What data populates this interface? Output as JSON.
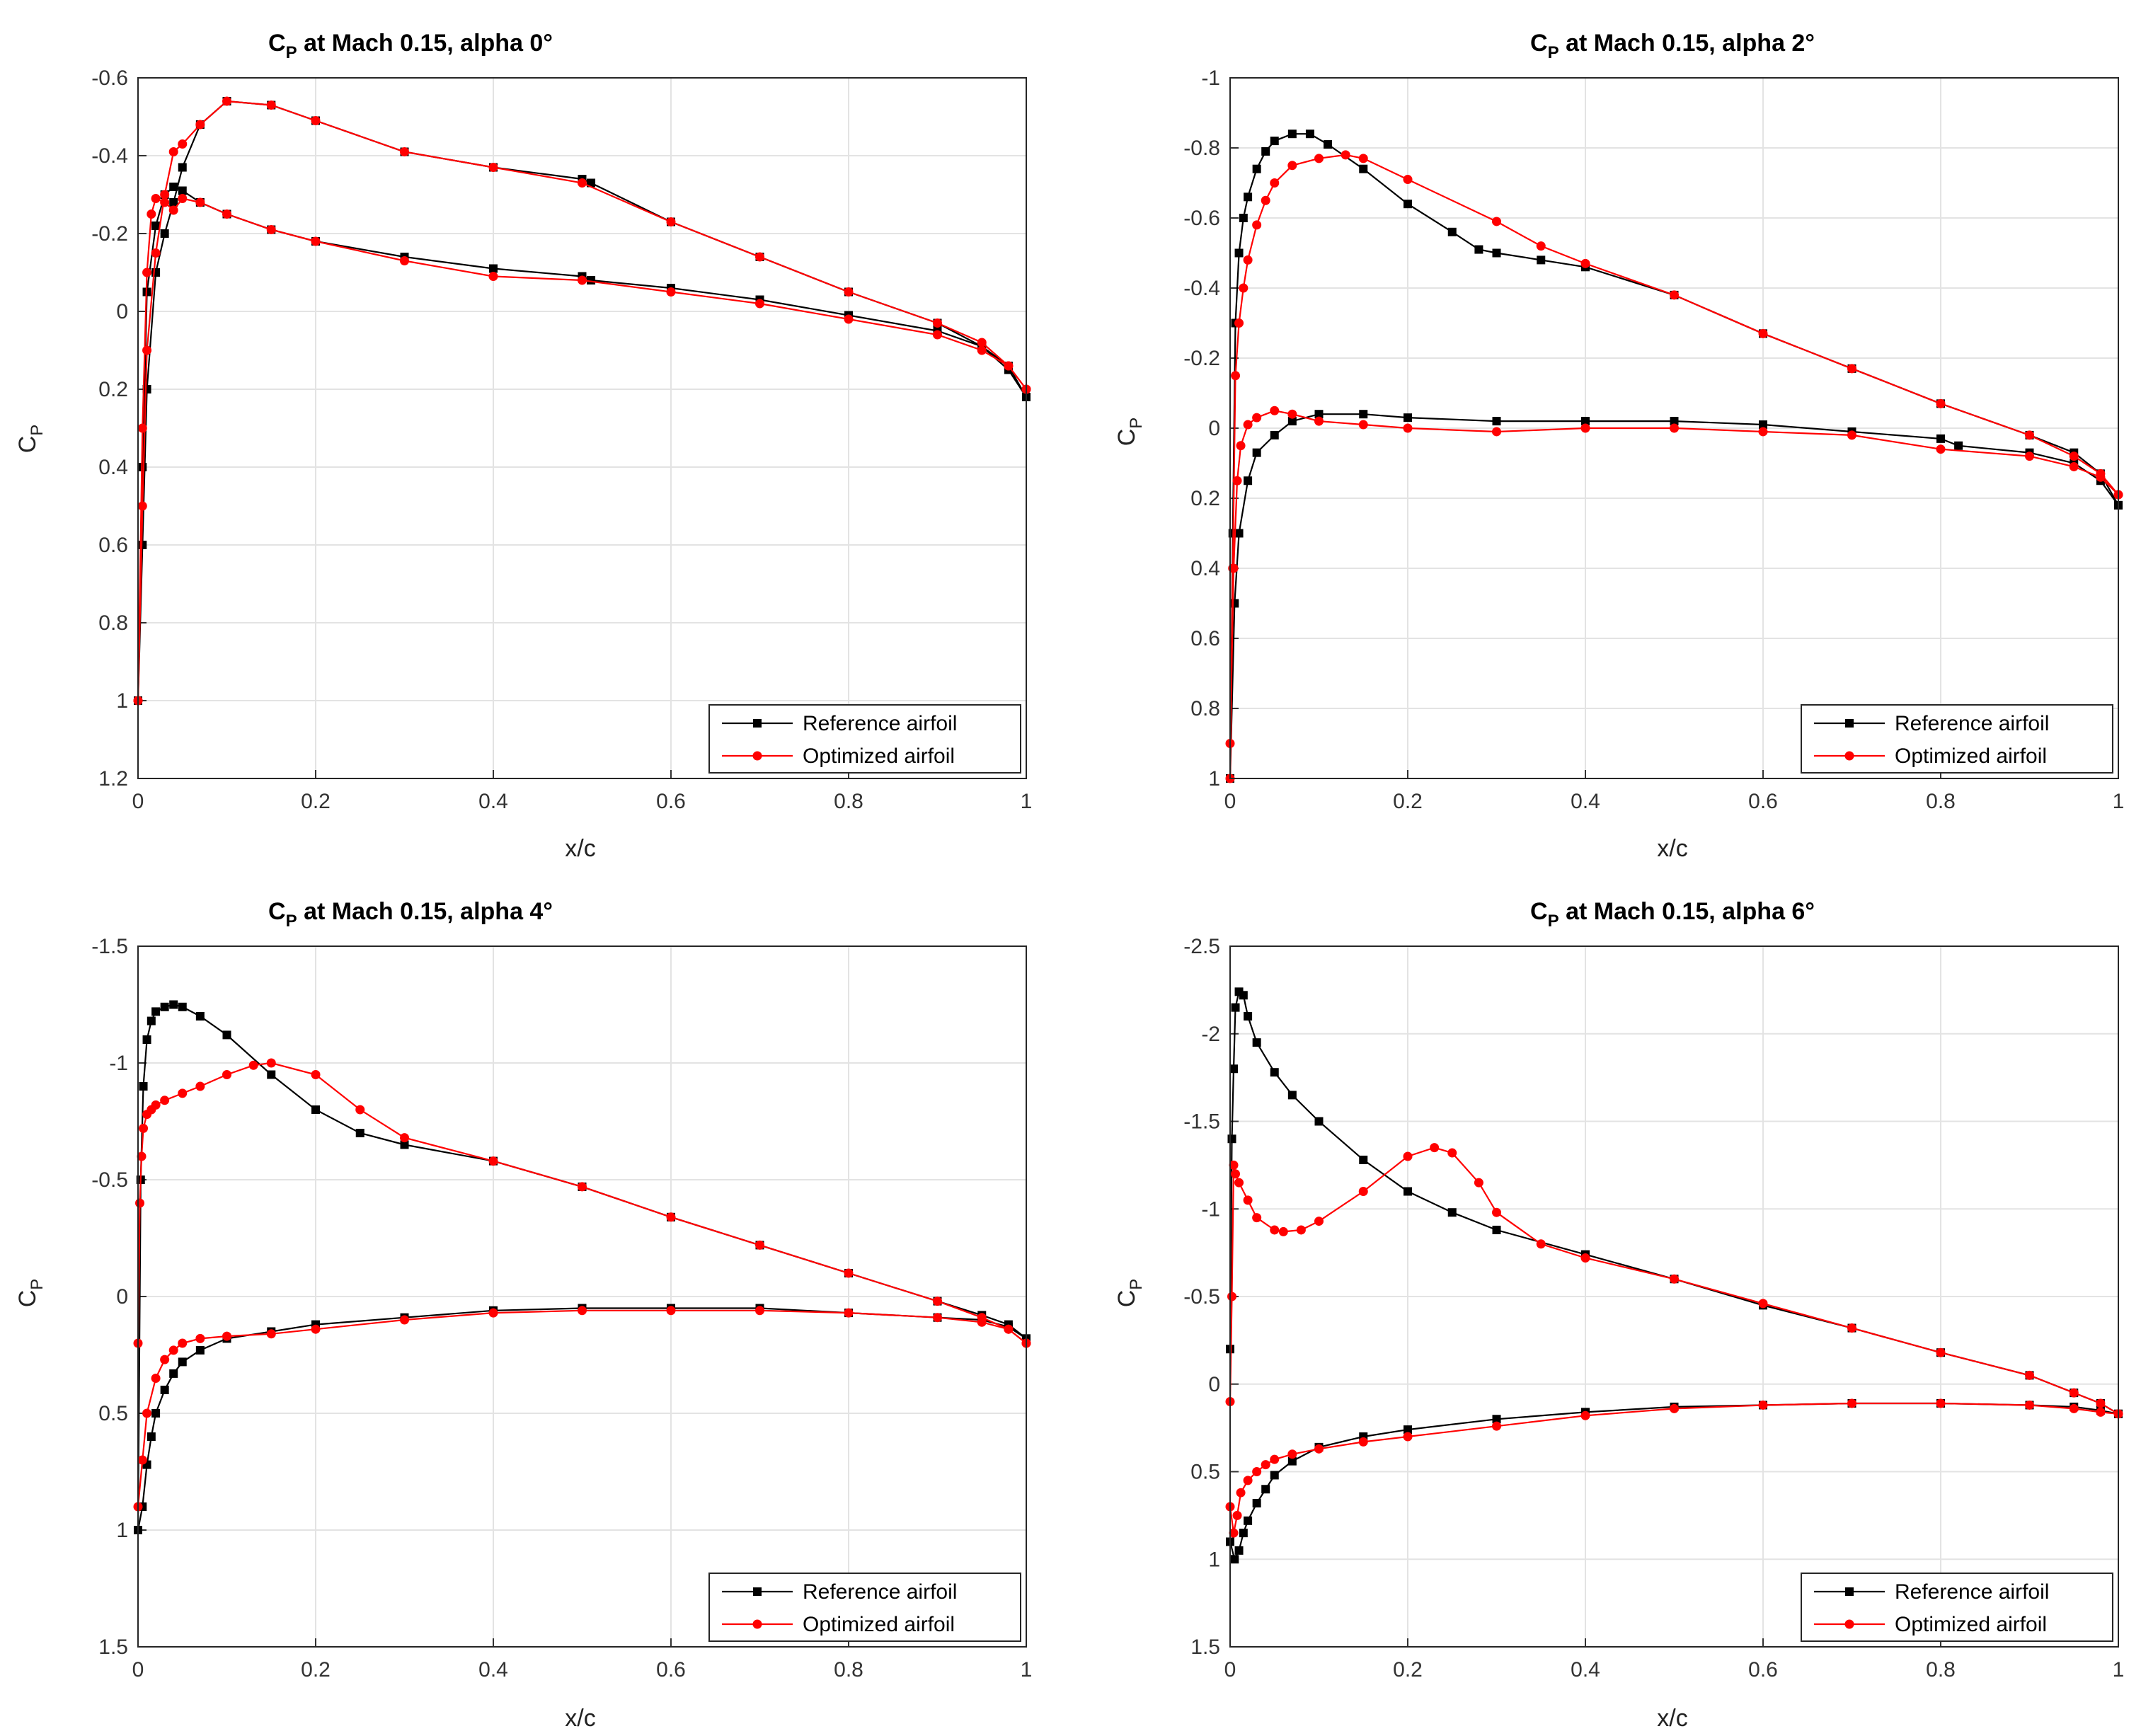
{
  "chart_data": [
    {
      "type": "line",
      "title": {
        "main": "C",
        "sub": "P",
        "rest": " at Mach 0.15, alpha 0°"
      },
      "xlabel": "x/c",
      "ylabel": {
        "main": "C",
        "sub": "P"
      },
      "xlim": [
        0,
        1
      ],
      "ylim": [
        -0.6,
        1.2
      ],
      "y_reversed": true,
      "xticks": [
        "0",
        "0.2",
        "0.4",
        "0.6",
        "0.8",
        "1"
      ],
      "yticks": [
        "-0.6",
        "-0.4",
        "-0.2",
        "0",
        "0.2",
        "0.4",
        "0.6",
        "0.8",
        "1",
        "1.2"
      ],
      "grid": true,
      "legend_position": "bottom-right",
      "series": [
        {
          "name": "Reference airfoil",
          "color": "#000000",
          "marker": "square",
          "upper_x": [
            0,
            0.005,
            0.01,
            0.02,
            0.03,
            0.04,
            0.05,
            0.07,
            0.1,
            0.15,
            0.2,
            0.3,
            0.4,
            0.5,
            0.51,
            0.6,
            0.7,
            0.8,
            0.9,
            0.95,
            0.98,
            1.0
          ],
          "upper_y": [
            1.0,
            0.4,
            -0.05,
            -0.22,
            -0.3,
            -0.32,
            -0.31,
            -0.28,
            -0.25,
            -0.21,
            -0.18,
            -0.14,
            -0.11,
            -0.09,
            -0.08,
            -0.06,
            -0.03,
            0.01,
            0.05,
            0.09,
            0.14,
            0.22
          ],
          "lower_x": [
            0,
            0.005,
            0.01,
            0.02,
            0.03,
            0.04,
            0.05,
            0.07,
            0.1,
            0.15,
            0.2,
            0.3,
            0.4,
            0.5,
            0.51,
            0.6,
            0.7,
            0.8,
            0.9,
            0.95,
            0.98,
            1.0
          ],
          "lower_y": [
            1.0,
            0.6,
            0.2,
            -0.1,
            -0.2,
            -0.28,
            -0.37,
            -0.48,
            -0.54,
            -0.53,
            -0.49,
            -0.41,
            -0.37,
            -0.34,
            -0.33,
            -0.23,
            -0.14,
            -0.05,
            0.03,
            0.09,
            0.15,
            0.22
          ]
        },
        {
          "name": "Optimized airfoil",
          "color": "#ff0000",
          "marker": "circle",
          "upper_x": [
            0,
            0.005,
            0.01,
            0.015,
            0.02,
            0.03,
            0.04,
            0.05,
            0.07,
            0.1,
            0.15,
            0.2,
            0.3,
            0.4,
            0.5,
            0.6,
            0.7,
            0.8,
            0.9,
            0.95,
            0.98,
            1.0
          ],
          "upper_y": [
            1.0,
            0.3,
            -0.1,
            -0.25,
            -0.29,
            -0.28,
            -0.26,
            -0.29,
            -0.28,
            -0.25,
            -0.21,
            -0.18,
            -0.13,
            -0.09,
            -0.08,
            -0.05,
            -0.02,
            0.02,
            0.06,
            0.1,
            0.14,
            0.2
          ],
          "lower_x": [
            0,
            0.005,
            0.01,
            0.02,
            0.03,
            0.04,
            0.05,
            0.07,
            0.1,
            0.15,
            0.2,
            0.3,
            0.4,
            0.5,
            0.6,
            0.7,
            0.8,
            0.9,
            0.95,
            0.98,
            1.0
          ],
          "lower_y": [
            1.0,
            0.5,
            0.1,
            -0.15,
            -0.3,
            -0.41,
            -0.43,
            -0.48,
            -0.54,
            -0.53,
            -0.49,
            -0.41,
            -0.37,
            -0.33,
            -0.23,
            -0.14,
            -0.05,
            0.03,
            0.08,
            0.14,
            0.2
          ]
        }
      ]
    },
    {
      "type": "line",
      "title": {
        "main": "C",
        "sub": "P",
        "rest": " at Mach 0.15, alpha 2°"
      },
      "xlabel": "x/c",
      "ylabel": {
        "main": "C",
        "sub": "P"
      },
      "xlim": [
        0,
        1
      ],
      "ylim": [
        -1,
        1
      ],
      "y_reversed": true,
      "xticks": [
        "0",
        "0.2",
        "0.4",
        "0.6",
        "0.8",
        "1"
      ],
      "yticks": [
        "-1",
        "-0.8",
        "-0.6",
        "-0.4",
        "-0.2",
        "0",
        "0.2",
        "0.4",
        "0.6",
        "0.8",
        "1"
      ],
      "grid": true,
      "legend_position": "bottom-right",
      "series": [
        {
          "name": "Reference airfoil",
          "color": "#000000",
          "marker": "square",
          "upper_x": [
            0,
            0.003,
            0.006,
            0.01,
            0.015,
            0.02,
            0.03,
            0.04,
            0.05,
            0.07,
            0.09,
            0.11,
            0.15,
            0.2,
            0.25,
            0.28,
            0.3,
            0.35,
            0.4,
            0.5,
            0.6,
            0.7,
            0.8,
            0.9,
            0.95,
            0.98,
            1.0
          ],
          "upper_y": [
            1.0,
            0.3,
            -0.3,
            -0.5,
            -0.6,
            -0.66,
            -0.74,
            -0.79,
            -0.82,
            -0.84,
            -0.84,
            -0.81,
            -0.74,
            -0.64,
            -0.56,
            -0.51,
            -0.5,
            -0.48,
            -0.46,
            -0.38,
            -0.27,
            -0.17,
            -0.07,
            0.02,
            0.07,
            0.13,
            0.22
          ],
          "lower_x": [
            0,
            0.005,
            0.01,
            0.02,
            0.03,
            0.05,
            0.07,
            0.1,
            0.15,
            0.2,
            0.3,
            0.4,
            0.5,
            0.6,
            0.7,
            0.8,
            0.82,
            0.9,
            0.95,
            0.98,
            1.0
          ],
          "lower_y": [
            1.0,
            0.5,
            0.3,
            0.15,
            0.07,
            0.02,
            -0.02,
            -0.04,
            -0.04,
            -0.03,
            -0.02,
            -0.02,
            -0.02,
            -0.01,
            0.01,
            0.03,
            0.05,
            0.07,
            0.1,
            0.15,
            0.22
          ]
        },
        {
          "name": "Optimized airfoil",
          "color": "#ff0000",
          "marker": "circle",
          "upper_x": [
            0,
            0.003,
            0.006,
            0.01,
            0.015,
            0.02,
            0.03,
            0.04,
            0.05,
            0.07,
            0.1,
            0.13,
            0.15,
            0.2,
            0.3,
            0.35,
            0.4,
            0.5,
            0.6,
            0.7,
            0.8,
            0.9,
            0.95,
            0.98,
            1.0
          ],
          "upper_y": [
            1.0,
            0.4,
            -0.15,
            -0.3,
            -0.4,
            -0.48,
            -0.58,
            -0.65,
            -0.7,
            -0.75,
            -0.77,
            -0.78,
            -0.77,
            -0.71,
            -0.59,
            -0.52,
            -0.47,
            -0.38,
            -0.27,
            -0.17,
            -0.07,
            0.02,
            0.08,
            0.13,
            0.19
          ],
          "lower_x": [
            0,
            0.004,
            0.008,
            0.012,
            0.02,
            0.03,
            0.05,
            0.07,
            0.1,
            0.15,
            0.2,
            0.3,
            0.4,
            0.5,
            0.6,
            0.7,
            0.8,
            0.9,
            0.95,
            0.98,
            1.0
          ],
          "lower_y": [
            0.9,
            0.4,
            0.15,
            0.05,
            -0.01,
            -0.03,
            -0.05,
            -0.04,
            -0.02,
            -0.01,
            0.0,
            0.01,
            0.0,
            0.0,
            0.01,
            0.02,
            0.06,
            0.08,
            0.11,
            0.14,
            0.19
          ]
        }
      ]
    },
    {
      "type": "line",
      "title": {
        "main": "C",
        "sub": "P",
        "rest": " at Mach 0.15, alpha 4°"
      },
      "xlabel": "x/c",
      "ylabel": {
        "main": "C",
        "sub": "P"
      },
      "xlim": [
        0,
        1
      ],
      "ylim": [
        -1.5,
        1.5
      ],
      "y_reversed": true,
      "xticks": [
        "0",
        "0.2",
        "0.4",
        "0.6",
        "0.8",
        "1"
      ],
      "yticks": [
        "-1.5",
        "-1",
        "-0.5",
        "0",
        "0.5",
        "1",
        "1.5"
      ],
      "grid": true,
      "legend_position": "bottom-right",
      "series": [
        {
          "name": "Reference airfoil",
          "color": "#000000",
          "marker": "square",
          "upper_x": [
            0,
            0.003,
            0.006,
            0.01,
            0.015,
            0.02,
            0.03,
            0.04,
            0.05,
            0.07,
            0.1,
            0.15,
            0.2,
            0.25,
            0.3,
            0.4,
            0.5,
            0.6,
            0.7,
            0.8,
            0.9,
            0.95,
            0.98,
            1.0
          ],
          "upper_y": [
            1.0,
            -0.5,
            -0.9,
            -1.1,
            -1.18,
            -1.22,
            -1.24,
            -1.25,
            -1.24,
            -1.2,
            -1.12,
            -0.95,
            -0.8,
            -0.7,
            -0.65,
            -0.58,
            -0.47,
            -0.34,
            -0.22,
            -0.1,
            0.02,
            0.08,
            0.12,
            0.18
          ],
          "lower_x": [
            0,
            0.005,
            0.01,
            0.015,
            0.02,
            0.03,
            0.04,
            0.05,
            0.07,
            0.1,
            0.15,
            0.2,
            0.3,
            0.4,
            0.5,
            0.6,
            0.7,
            0.8,
            0.9,
            0.95,
            0.98,
            1.0
          ],
          "lower_y": [
            1.0,
            0.9,
            0.72,
            0.6,
            0.5,
            0.4,
            0.33,
            0.28,
            0.23,
            0.18,
            0.15,
            0.12,
            0.09,
            0.06,
            0.05,
            0.05,
            0.05,
            0.07,
            0.09,
            0.1,
            0.13,
            0.18
          ]
        },
        {
          "name": "Optimized airfoil",
          "color": "#ff0000",
          "marker": "circle",
          "upper_x": [
            0,
            0.002,
            0.004,
            0.006,
            0.01,
            0.015,
            0.02,
            0.03,
            0.05,
            0.07,
            0.1,
            0.13,
            0.15,
            0.2,
            0.25,
            0.3,
            0.4,
            0.5,
            0.6,
            0.7,
            0.8,
            0.9,
            0.95,
            0.98,
            1.0
          ],
          "upper_y": [
            0.2,
            -0.4,
            -0.6,
            -0.72,
            -0.78,
            -0.8,
            -0.82,
            -0.84,
            -0.87,
            -0.9,
            -0.95,
            -0.99,
            -1.0,
            -0.95,
            -0.8,
            -0.68,
            -0.58,
            -0.47,
            -0.34,
            -0.22,
            -0.1,
            0.02,
            0.09,
            0.14,
            0.2
          ],
          "lower_x": [
            0,
            0.005,
            0.01,
            0.02,
            0.03,
            0.04,
            0.05,
            0.07,
            0.1,
            0.15,
            0.2,
            0.3,
            0.4,
            0.5,
            0.6,
            0.7,
            0.8,
            0.9,
            0.95,
            0.98,
            1.0
          ],
          "lower_y": [
            0.9,
            0.7,
            0.5,
            0.35,
            0.27,
            0.23,
            0.2,
            0.18,
            0.17,
            0.16,
            0.14,
            0.1,
            0.07,
            0.06,
            0.06,
            0.06,
            0.07,
            0.09,
            0.11,
            0.14,
            0.2
          ]
        }
      ]
    },
    {
      "type": "line",
      "title": {
        "main": "C",
        "sub": "P",
        "rest": " at Mach 0.15, alpha 6°"
      },
      "xlabel": "x/c",
      "ylabel": {
        "main": "C",
        "sub": "P"
      },
      "xlim": [
        0,
        1
      ],
      "ylim": [
        -2.5,
        1.5
      ],
      "y_reversed": true,
      "xticks": [
        "0",
        "0.2",
        "0.4",
        "0.6",
        "0.8",
        "1"
      ],
      "yticks": [
        "-2.5",
        "-2",
        "-1.5",
        "-1",
        "-0.5",
        "0",
        "0.5",
        "1",
        "1.5"
      ],
      "grid": true,
      "legend_position": "bottom-right",
      "series": [
        {
          "name": "Reference airfoil",
          "color": "#000000",
          "marker": "square",
          "upper_x": [
            0,
            0.002,
            0.004,
            0.006,
            0.01,
            0.015,
            0.02,
            0.03,
            0.05,
            0.07,
            0.1,
            0.15,
            0.2,
            0.25,
            0.3,
            0.4,
            0.5,
            0.6,
            0.7,
            0.8,
            0.9,
            0.95,
            0.98,
            1.0
          ],
          "upper_y": [
            -0.2,
            -1.4,
            -1.8,
            -2.15,
            -2.24,
            -2.22,
            -2.1,
            -1.95,
            -1.78,
            -1.65,
            -1.5,
            -1.28,
            -1.1,
            -0.98,
            -0.88,
            -0.74,
            -0.6,
            -0.45,
            -0.32,
            -0.18,
            -0.05,
            0.05,
            0.11,
            0.17
          ],
          "lower_x": [
            0,
            0.005,
            0.01,
            0.015,
            0.02,
            0.03,
            0.04,
            0.05,
            0.07,
            0.1,
            0.15,
            0.2,
            0.3,
            0.4,
            0.5,
            0.6,
            0.7,
            0.8,
            0.9,
            0.95,
            0.98,
            1.0
          ],
          "lower_y": [
            0.9,
            1.0,
            0.95,
            0.85,
            0.78,
            0.68,
            0.6,
            0.52,
            0.44,
            0.36,
            0.3,
            0.26,
            0.2,
            0.16,
            0.13,
            0.12,
            0.11,
            0.11,
            0.12,
            0.13,
            0.15,
            0.17
          ]
        },
        {
          "name": "Optimized airfoil",
          "color": "#ff0000",
          "marker": "circle",
          "upper_x": [
            0,
            0.002,
            0.004,
            0.006,
            0.01,
            0.02,
            0.03,
            0.05,
            0.06,
            0.08,
            0.1,
            0.15,
            0.2,
            0.23,
            0.25,
            0.28,
            0.3,
            0.35,
            0.4,
            0.5,
            0.6,
            0.7,
            0.8,
            0.9,
            0.95,
            0.98,
            1.0
          ],
          "upper_y": [
            0.1,
            -0.5,
            -1.25,
            -1.2,
            -1.15,
            -1.05,
            -0.95,
            -0.88,
            -0.87,
            -0.88,
            -0.93,
            -1.1,
            -1.3,
            -1.35,
            -1.32,
            -1.15,
            -0.98,
            -0.8,
            -0.72,
            -0.6,
            -0.46,
            -0.32,
            -0.18,
            -0.05,
            0.05,
            0.11,
            0.17
          ],
          "lower_x": [
            0,
            0.004,
            0.008,
            0.012,
            0.02,
            0.03,
            0.04,
            0.05,
            0.07,
            0.1,
            0.15,
            0.2,
            0.3,
            0.4,
            0.5,
            0.6,
            0.7,
            0.8,
            0.9,
            0.95,
            0.98,
            1.0
          ],
          "lower_y": [
            0.7,
            0.85,
            0.75,
            0.62,
            0.55,
            0.5,
            0.46,
            0.43,
            0.4,
            0.37,
            0.33,
            0.3,
            0.24,
            0.18,
            0.14,
            0.12,
            0.11,
            0.11,
            0.12,
            0.14,
            0.16,
            0.17
          ]
        }
      ]
    }
  ]
}
